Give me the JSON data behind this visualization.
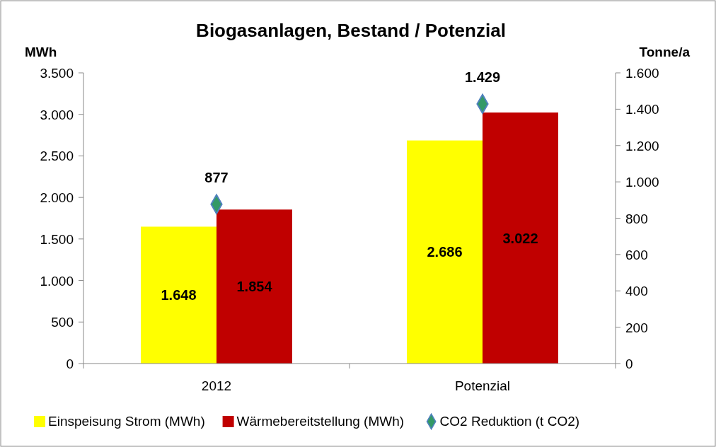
{
  "chart_data": {
    "type": "bar",
    "title": "Biogasanlagen, Bestand / Potenzial",
    "ylabel": "MWh",
    "y2label": "Tonne/a",
    "categories": [
      "2012",
      "Potenzial"
    ],
    "series": [
      {
        "name": "Einspeisung Strom (MWh)",
        "color": "#ffff00",
        "values": [
          1648,
          2686
        ],
        "value_labels": [
          "1.648",
          "2.686"
        ]
      },
      {
        "name": "Wärmebereitstellung (MWh)",
        "color": "#c00000",
        "values": [
          1854,
          3022
        ],
        "value_labels": [
          "1.854",
          "3.022"
        ]
      },
      {
        "name": "CO2 Reduktion (t CO2)",
        "type": "scatter",
        "axis": "y2",
        "marker": "diamond",
        "color": "#339966",
        "values": [
          877,
          1429
        ],
        "value_labels": [
          "877",
          "1.429"
        ]
      }
    ],
    "ylim": [
      0,
      3500
    ],
    "yticks": [
      0,
      500,
      {
        "value": 1000,
        "label": "1.000"
      },
      {
        "value": 1500,
        "label": "1.500"
      },
      {
        "value": 2000,
        "label": "2.000"
      },
      {
        "value": 2500,
        "label": "2.500"
      },
      {
        "value": 3000,
        "label": "3.000"
      },
      {
        "value": 3500,
        "label": "3.500"
      }
    ],
    "y2lim": [
      0,
      1600
    ],
    "y2ticks": [
      0,
      200,
      400,
      600,
      800,
      {
        "value": 1000,
        "label": "1.000"
      },
      {
        "value": 1200,
        "label": "1.200"
      },
      {
        "value": 1400,
        "label": "1.400"
      },
      {
        "value": 1600,
        "label": "1.600"
      }
    ],
    "grid": false,
    "legend": "bottom"
  }
}
